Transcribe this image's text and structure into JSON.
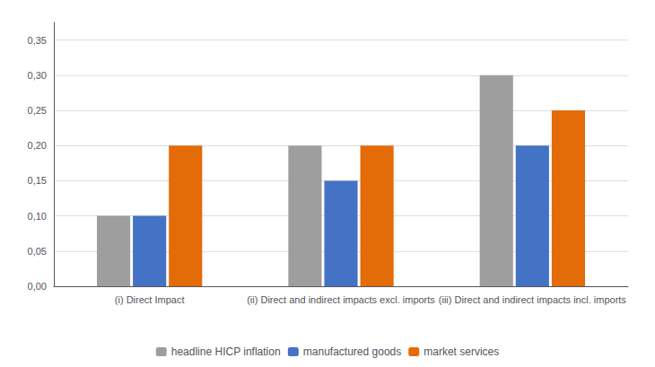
{
  "chart_data": {
    "type": "bar",
    "categories": [
      "(i) Direct Impact",
      "(ii) Direct and indirect impacts excl. imports",
      "(iii) Direct and indirect impacts incl. imports"
    ],
    "series": [
      {
        "name": "headline HICP inflation",
        "color": "#9e9e9e",
        "values": [
          0.1,
          0.2,
          0.3
        ]
      },
      {
        "name": "manufactured goods",
        "color": "#4472c4",
        "values": [
          0.1,
          0.15,
          0.2
        ]
      },
      {
        "name": "market services",
        "color": "#e36c09",
        "values": [
          0.2,
          0.2,
          0.25
        ]
      }
    ],
    "ylim": [
      0,
      0.375
    ],
    "yticks": [
      {
        "value": 0.0,
        "label": "0,00"
      },
      {
        "value": 0.05,
        "label": "0,05"
      },
      {
        "value": 0.1,
        "label": "0,10"
      },
      {
        "value": 0.15,
        "label": "0,15"
      },
      {
        "value": 0.2,
        "label": "0,20"
      },
      {
        "value": 0.25,
        "label": "0,25"
      },
      {
        "value": 0.3,
        "label": "0,30"
      },
      {
        "value": 0.35,
        "label": "0,35"
      }
    ],
    "grid": true,
    "legend": "bottom"
  }
}
